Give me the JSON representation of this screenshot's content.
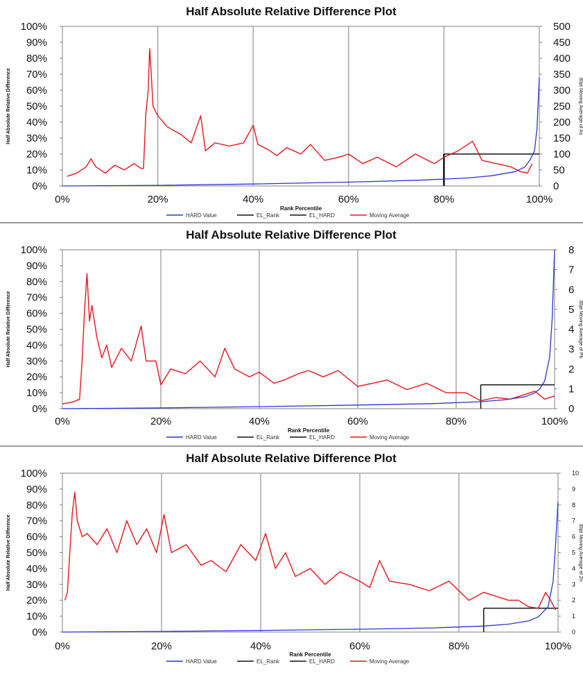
{
  "colors": {
    "moving_average": "#e8141b",
    "hard_value": "#2b34c8",
    "el_lines": "#111111",
    "gridline": "#9a9a9a"
  },
  "chart_data": [
    {
      "type": "line",
      "title": "Half Absolute Relative Difference Plot",
      "xlabel": "Rank Percentile",
      "ylabel": "Half Absolute Relative Difference",
      "y2label": "30pt Moving Average of As",
      "xlim": [
        0,
        1
      ],
      "ylim": [
        0,
        1
      ],
      "y2lim": [
        0,
        500
      ],
      "x_ticks": [
        "0%",
        "20%",
        "40%",
        "60%",
        "80%",
        "100%"
      ],
      "y_ticks": [
        "0%",
        "10%",
        "20%",
        "30%",
        "40%",
        "50%",
        "60%",
        "70%",
        "80%",
        "90%",
        "100%"
      ],
      "y2_ticks": [
        "0",
        "50",
        "100",
        "150",
        "200",
        "250",
        "300",
        "350",
        "400",
        "450",
        "500"
      ],
      "grid": "vertical",
      "legend_position": "bottom",
      "legend": [
        "HARD Value",
        "EL_Rank",
        "EL_HARD",
        "Moving Average"
      ],
      "series": [
        {
          "name": "Moving Average",
          "axis": "left",
          "x": [
            0.01,
            0.03,
            0.05,
            0.06,
            0.07,
            0.09,
            0.11,
            0.13,
            0.15,
            0.165,
            0.17,
            0.175,
            0.18,
            0.183,
            0.186,
            0.19,
            0.2,
            0.22,
            0.25,
            0.27,
            0.29,
            0.3,
            0.32,
            0.35,
            0.38,
            0.4,
            0.41,
            0.43,
            0.45,
            0.47,
            0.5,
            0.52,
            0.55,
            0.58,
            0.6,
            0.63,
            0.66,
            0.7,
            0.74,
            0.78,
            0.8,
            0.83,
            0.86,
            0.88,
            0.91,
            0.94,
            0.96,
            0.975,
            0.985
          ],
          "y": [
            0.06,
            0.08,
            0.12,
            0.17,
            0.12,
            0.08,
            0.13,
            0.1,
            0.14,
            0.11,
            0.11,
            0.45,
            0.6,
            0.86,
            0.72,
            0.5,
            0.44,
            0.37,
            0.32,
            0.27,
            0.44,
            0.22,
            0.27,
            0.25,
            0.27,
            0.38,
            0.26,
            0.23,
            0.19,
            0.24,
            0.2,
            0.26,
            0.16,
            0.18,
            0.2,
            0.14,
            0.18,
            0.12,
            0.2,
            0.14,
            0.18,
            0.22,
            0.28,
            0.16,
            0.14,
            0.12,
            0.09,
            0.08,
            0.14
          ]
        },
        {
          "name": "HARD Value",
          "axis": "right",
          "x": [
            0,
            0.2,
            0.4,
            0.6,
            0.75,
            0.85,
            0.9,
            0.95,
            0.97,
            0.98,
            0.99,
            0.995,
            1.0
          ],
          "y": [
            0,
            2,
            6,
            12,
            18,
            25,
            32,
            45,
            60,
            80,
            110,
            180,
            340
          ]
        }
      ],
      "el_rank": 0.8,
      "el_hard": 0.2
    },
    {
      "type": "line",
      "title": "Half Absolute Relative Difference Plot",
      "xlabel": "Rank Percentile",
      "ylabel": "Half Absolute Relative Difference",
      "y2label": "30pt Moving Average of Pb",
      "xlim": [
        0,
        1
      ],
      "ylim": [
        0,
        1
      ],
      "y2lim": [
        0,
        8
      ],
      "x_ticks": [
        "0%",
        "20%",
        "40%",
        "60%",
        "80%",
        "100%"
      ],
      "y_ticks": [
        "0%",
        "10%",
        "20%",
        "30%",
        "40%",
        "50%",
        "60%",
        "70%",
        "80%",
        "90%",
        "100%"
      ],
      "y2_ticks": [
        "0",
        "1",
        "2",
        "3",
        "4",
        "5",
        "6",
        "7",
        "8"
      ],
      "grid": "vertical",
      "legend_position": "bottom",
      "legend": [
        "HARD Value",
        "EL_Rank",
        "EL_HARD",
        "Moving Average"
      ],
      "series": [
        {
          "name": "Moving Average",
          "axis": "left",
          "x": [
            0.0,
            0.02,
            0.035,
            0.04,
            0.045,
            0.05,
            0.055,
            0.06,
            0.07,
            0.08,
            0.09,
            0.1,
            0.12,
            0.14,
            0.16,
            0.17,
            0.19,
            0.2,
            0.22,
            0.25,
            0.28,
            0.31,
            0.33,
            0.35,
            0.38,
            0.4,
            0.43,
            0.45,
            0.48,
            0.5,
            0.53,
            0.56,
            0.6,
            0.63,
            0.66,
            0.7,
            0.74,
            0.78,
            0.82,
            0.85,
            0.88,
            0.91,
            0.94,
            0.96,
            0.98,
            1.0
          ],
          "y": [
            0.03,
            0.04,
            0.06,
            0.3,
            0.62,
            0.85,
            0.55,
            0.65,
            0.45,
            0.32,
            0.4,
            0.26,
            0.38,
            0.3,
            0.52,
            0.3,
            0.3,
            0.15,
            0.25,
            0.22,
            0.3,
            0.2,
            0.38,
            0.25,
            0.2,
            0.23,
            0.16,
            0.18,
            0.22,
            0.24,
            0.2,
            0.24,
            0.14,
            0.16,
            0.18,
            0.12,
            0.16,
            0.1,
            0.1,
            0.05,
            0.07,
            0.06,
            0.09,
            0.11,
            0.06,
            0.08
          ]
        },
        {
          "name": "HARD Value",
          "axis": "right",
          "x": [
            0,
            0.2,
            0.4,
            0.6,
            0.75,
            0.85,
            0.9,
            0.94,
            0.96,
            0.97,
            0.98,
            0.99,
            0.995,
            1.0
          ],
          "y": [
            0,
            0.04,
            0.1,
            0.18,
            0.25,
            0.35,
            0.45,
            0.6,
            0.8,
            1.0,
            1.4,
            2.6,
            4.5,
            8.0
          ]
        }
      ],
      "el_rank": 0.85,
      "el_hard": 0.15
    },
    {
      "type": "line",
      "title": "Half Absolute Relative Difference Plot",
      "xlabel": "Rank Percentile",
      "ylabel": "Half Absolute Relative Difference",
      "y2label": "30pt Moving Average of Zn",
      "xlim": [
        0,
        1
      ],
      "ylim": [
        0,
        1
      ],
      "y2lim": [
        0,
        10
      ],
      "x_ticks": [
        "0%",
        "20%",
        "40%",
        "60%",
        "80%",
        "100%"
      ],
      "y_ticks": [
        "0%",
        "10%",
        "20%",
        "30%",
        "40%",
        "50%",
        "60%",
        "70%",
        "80%",
        "90%",
        "100%"
      ],
      "y2_ticks": [
        "0",
        "1",
        "2",
        "3",
        "4",
        "5",
        "6",
        "7",
        "8",
        "9",
        "10"
      ],
      "grid": "vertical",
      "legend_position": "bottom",
      "legend": [
        "HARD Value",
        "EL_Rank",
        "EL_HARD",
        "Moving Average"
      ],
      "series": [
        {
          "name": "Moving Average",
          "axis": "left",
          "x": [
            0.005,
            0.01,
            0.015,
            0.02,
            0.025,
            0.03,
            0.04,
            0.05,
            0.07,
            0.09,
            0.11,
            0.13,
            0.15,
            0.17,
            0.19,
            0.205,
            0.22,
            0.25,
            0.28,
            0.3,
            0.33,
            0.36,
            0.39,
            0.41,
            0.43,
            0.45,
            0.47,
            0.5,
            0.53,
            0.56,
            0.6,
            0.62,
            0.64,
            0.66,
            0.7,
            0.74,
            0.78,
            0.8,
            0.82,
            0.85,
            0.88,
            0.9,
            0.92,
            0.94,
            0.96,
            0.975,
            0.985,
            0.995
          ],
          "y": [
            0.2,
            0.25,
            0.5,
            0.75,
            0.88,
            0.7,
            0.6,
            0.62,
            0.55,
            0.65,
            0.5,
            0.7,
            0.55,
            0.65,
            0.5,
            0.74,
            0.5,
            0.55,
            0.42,
            0.45,
            0.38,
            0.55,
            0.45,
            0.62,
            0.4,
            0.5,
            0.35,
            0.4,
            0.3,
            0.38,
            0.32,
            0.28,
            0.45,
            0.32,
            0.3,
            0.26,
            0.32,
            0.26,
            0.2,
            0.25,
            0.22,
            0.2,
            0.2,
            0.16,
            0.15,
            0.25,
            0.2,
            0.14
          ]
        },
        {
          "name": "HARD Value",
          "axis": "right",
          "x": [
            0,
            0.2,
            0.4,
            0.6,
            0.75,
            0.85,
            0.9,
            0.94,
            0.96,
            0.98,
            0.99,
            0.995,
            1.0
          ],
          "y": [
            0,
            0.04,
            0.1,
            0.18,
            0.26,
            0.38,
            0.5,
            0.7,
            0.95,
            1.6,
            3.2,
            5.5,
            8.2
          ]
        }
      ],
      "el_rank": 0.85,
      "el_hard": 0.15
    }
  ]
}
